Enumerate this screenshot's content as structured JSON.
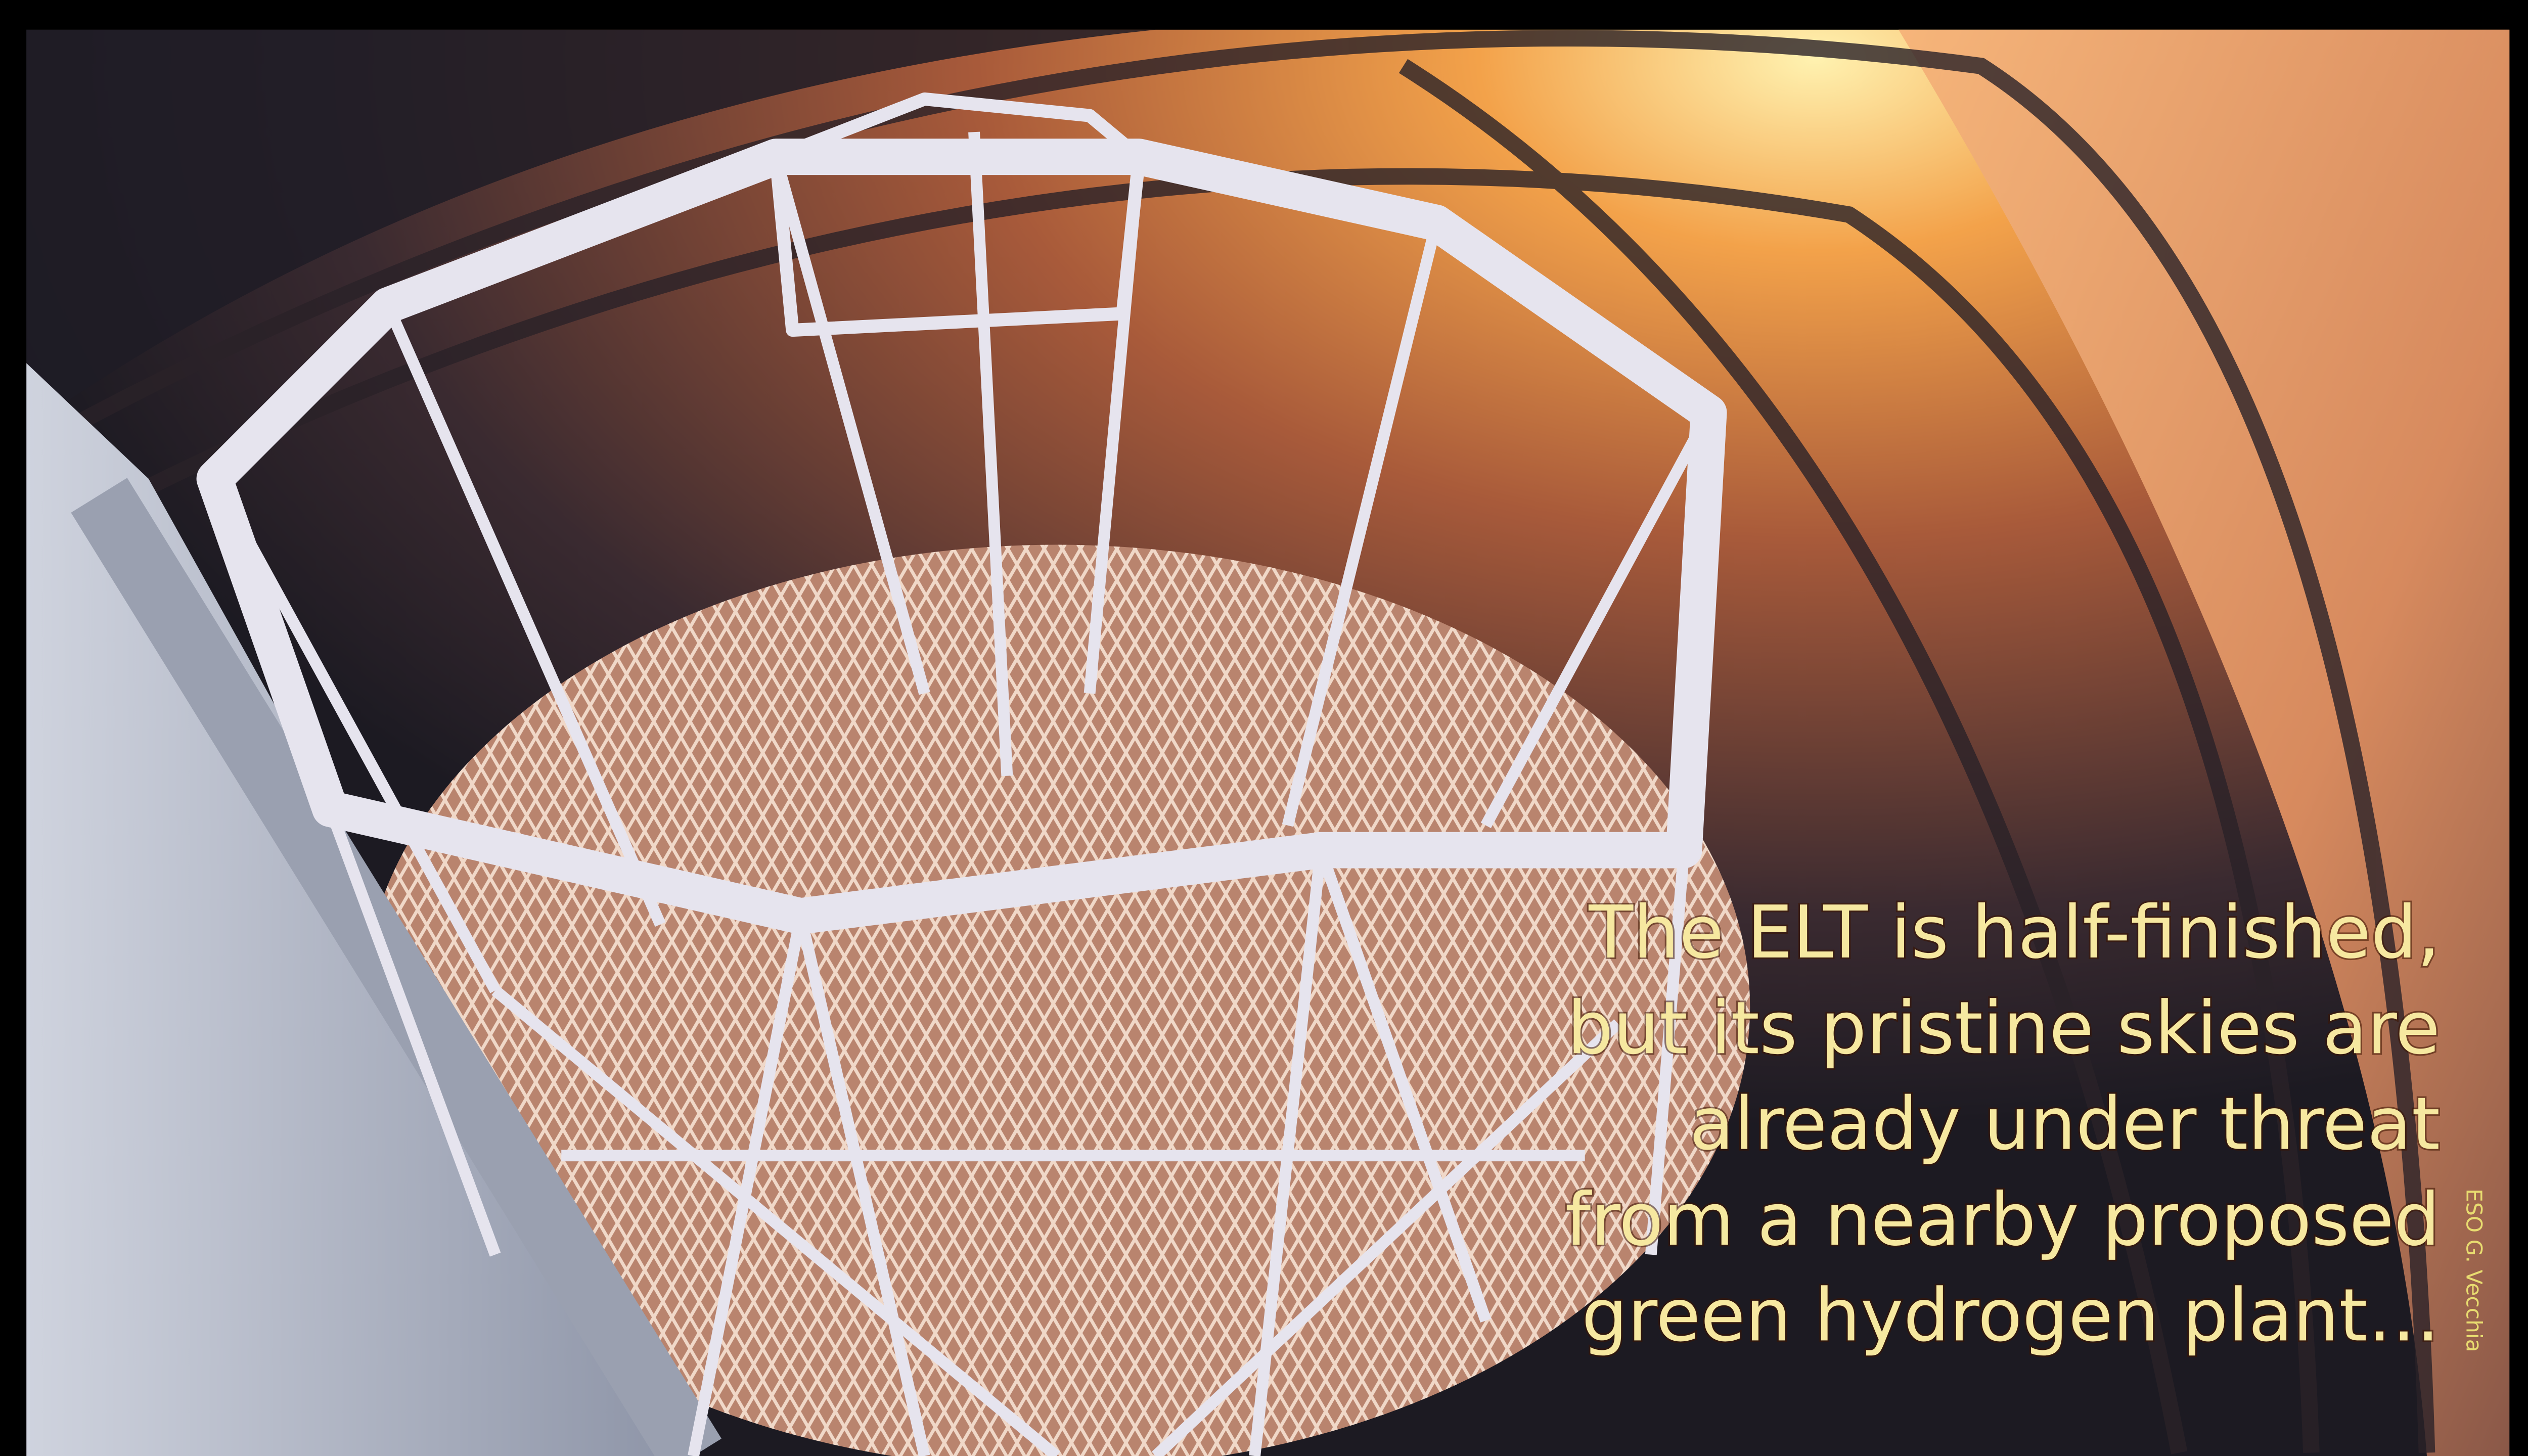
{
  "caption": {
    "lines": [
      "The ELT is half-finished,",
      "but its pristine skies are",
      "already under threat",
      "from a nearby proposed",
      "green hydrogen plant…"
    ]
  },
  "credit": "ESO G. Vecchia"
}
